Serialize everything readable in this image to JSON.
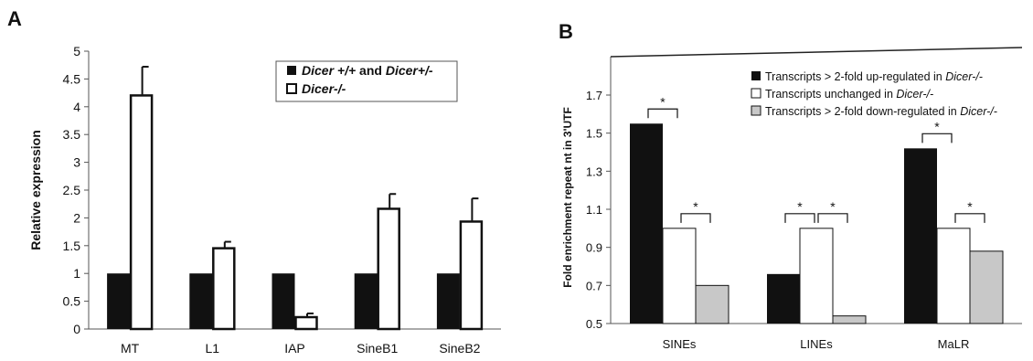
{
  "panel_a_label": "A",
  "panel_b_label": "B",
  "colors": {
    "filled": "#111111",
    "open": "#ffffff",
    "gray": "#c8c8c8",
    "axis": "#555555"
  },
  "chart_data": [
    {
      "type": "bar",
      "categories": [
        "MT",
        "L1",
        "IAP",
        "SineB1",
        "SineB2"
      ],
      "ylabel": "Relative expression",
      "ylim": [
        0,
        5
      ],
      "yticks": [
        "0",
        "0.5",
        "1",
        "1.5",
        "2",
        "2.5",
        "3",
        "3.5",
        "4",
        "4.5",
        "5"
      ],
      "grid": false,
      "legend_position": "top-right",
      "series": [
        {
          "name_prefix": "Dicer +/+",
          "name_mid": " and ",
          "name_suffix": "Dicer+/-",
          "values": [
            1,
            1,
            1,
            1,
            1
          ],
          "error": [
            0,
            0,
            0,
            0,
            0
          ]
        },
        {
          "name": "Dicer-/-",
          "values": [
            4.22,
            1.47,
            0.23,
            2.18,
            1.95
          ],
          "error": [
            0.5,
            0.1,
            0.05,
            0.25,
            0.4
          ]
        }
      ]
    },
    {
      "type": "bar",
      "categories": [
        "SINEs",
        "LINEs",
        "MaLR"
      ],
      "ylabel": "Fold enrichment repeat nt in 3'UTF",
      "ylim": [
        0.5,
        1.7
      ],
      "yticks": [
        "0.5",
        "0.7",
        "0.9",
        "1.1",
        "1.3",
        "1.5",
        "1.7"
      ],
      "grid": false,
      "legend_position": "top-right",
      "series": [
        {
          "name_main": "Transcripts > 2-fold up-regulated in ",
          "name_italic": "Dicer-/-",
          "values": [
            1.55,
            0.76,
            1.42
          ]
        },
        {
          "name_main": "Transcripts unchanged in ",
          "name_italic": "Dicer-/-",
          "values": [
            1.0,
            1.0,
            1.0
          ]
        },
        {
          "name_main": "Transcripts > 2-fold down-regulated in ",
          "name_italic": "Dicer-/-",
          "values": [
            0.7,
            0.54,
            0.88
          ]
        }
      ],
      "significance_marker": "*",
      "significance_pairs": [
        {
          "group": 0,
          "from": 0,
          "to": 1
        },
        {
          "group": 0,
          "from": 1,
          "to": 2
        },
        {
          "group": 1,
          "from": 0,
          "to": 1
        },
        {
          "group": 1,
          "from": 1,
          "to": 2
        },
        {
          "group": 2,
          "from": 0,
          "to": 1
        },
        {
          "group": 2,
          "from": 1,
          "to": 2
        }
      ]
    }
  ]
}
